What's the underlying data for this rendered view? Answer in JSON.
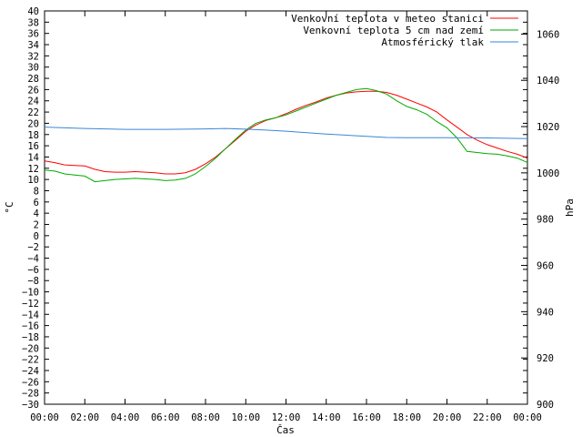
{
  "chart_data": {
    "type": "line",
    "xlabel": "Čas",
    "ylabel": "°C",
    "y2label": "hPa",
    "ylim": [
      -30,
      40
    ],
    "y2lim": [
      900,
      1070
    ],
    "xlim": [
      0,
      24
    ],
    "x_tick_labels": [
      "00:00",
      "02:00",
      "04:00",
      "06:00",
      "08:00",
      "10:00",
      "12:00",
      "14:00",
      "16:00",
      "18:00",
      "20:00",
      "22:00",
      "00:00"
    ],
    "y_ticks": [
      40,
      38,
      36,
      34,
      32,
      30,
      28,
      26,
      24,
      22,
      20,
      18,
      16,
      14,
      12,
      10,
      8,
      6,
      4,
      2,
      0,
      -2,
      -4,
      -6,
      -8,
      -10,
      -12,
      -14,
      -16,
      -18,
      -20,
      -22,
      -24,
      -26,
      -28,
      -30
    ],
    "y2_ticks": [
      1060,
      1040,
      1020,
      1000,
      980,
      960,
      940,
      920,
      900
    ],
    "grid": false,
    "legend_placement": "top-right",
    "series": [
      {
        "name": "Venkovní teplota v meteo stanici",
        "color": "#ff0000",
        "axis": "left",
        "x": [
          0,
          0.5,
          1,
          1.5,
          2,
          2.5,
          3,
          3.5,
          4,
          4.5,
          5,
          5.5,
          6,
          6.5,
          7,
          7.5,
          8,
          8.5,
          9,
          9.5,
          10,
          10.5,
          11,
          11.5,
          12,
          12.5,
          13,
          13.5,
          14,
          14.5,
          15,
          15.5,
          16,
          16.5,
          17,
          17.5,
          18,
          18.5,
          19,
          19.5,
          20,
          20.5,
          21,
          21.5,
          22,
          22.5,
          23,
          23.5,
          24
        ],
        "values": [
          13.3,
          13.0,
          12.6,
          12.5,
          12.4,
          11.8,
          11.4,
          11.3,
          11.3,
          11.4,
          11.3,
          11.2,
          11.0,
          11.0,
          11.2,
          11.8,
          12.8,
          14.0,
          15.5,
          17.0,
          18.6,
          19.7,
          20.5,
          21.0,
          21.7,
          22.5,
          23.2,
          23.8,
          24.5,
          25.0,
          25.4,
          25.6,
          25.7,
          25.7,
          25.5,
          25.0,
          24.3,
          23.6,
          22.9,
          22.0,
          20.6,
          19.3,
          18.0,
          17.0,
          16.2,
          15.6,
          15.0,
          14.5,
          13.8
        ]
      },
      {
        "name": "Venkovní teplota 5 cm nad zemí",
        "color": "#00aa00",
        "axis": "left",
        "x": [
          0,
          0.5,
          1,
          1.5,
          2,
          2.5,
          3,
          3.5,
          4,
          4.5,
          5,
          5.5,
          6,
          6.5,
          7,
          7.5,
          8,
          8.5,
          9,
          9.5,
          10,
          10.5,
          11,
          11.5,
          12,
          12.5,
          13,
          13.5,
          14,
          14.5,
          15,
          15.5,
          16,
          16.5,
          17,
          17.5,
          18,
          18.5,
          19,
          19.5,
          20,
          20.5,
          21,
          21.5,
          22,
          22.5,
          23,
          23.5,
          24
        ],
        "values": [
          11.7,
          11.5,
          11.0,
          10.8,
          10.6,
          9.6,
          9.8,
          10.0,
          10.1,
          10.2,
          10.1,
          10.0,
          9.8,
          9.9,
          10.2,
          11.0,
          12.3,
          13.8,
          15.5,
          17.2,
          18.8,
          20.0,
          20.6,
          21.0,
          21.5,
          22.2,
          22.9,
          23.6,
          24.3,
          25.0,
          25.5,
          26.0,
          26.2,
          25.8,
          25.2,
          24.0,
          23.0,
          22.4,
          21.6,
          20.3,
          19.2,
          17.4,
          15.0,
          14.8,
          14.6,
          14.5,
          14.2,
          13.8,
          13.0
        ]
      },
      {
        "name": "Atmosférický tlak",
        "color": "#3a86d8",
        "axis": "right",
        "x": [
          0,
          2,
          4,
          6,
          8,
          9,
          10,
          11,
          12,
          14,
          16,
          17,
          18,
          20,
          22,
          24
        ],
        "values": [
          1019.8,
          1019.2,
          1018.8,
          1018.8,
          1019.0,
          1019.2,
          1018.9,
          1018.5,
          1018.0,
          1016.8,
          1015.8,
          1015.3,
          1015.2,
          1015.2,
          1015.1,
          1014.8
        ]
      }
    ]
  }
}
